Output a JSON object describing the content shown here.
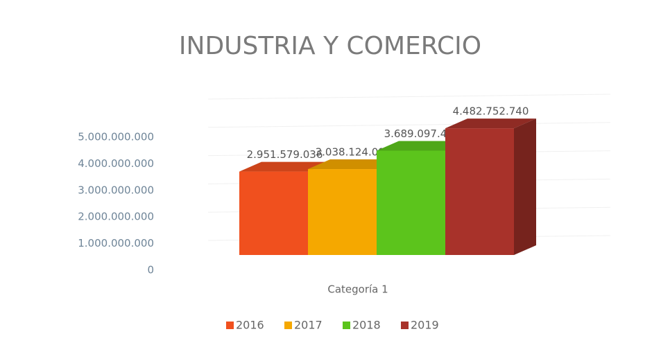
{
  "chart_data": {
    "type": "bar3d",
    "title": "INDUSTRIA Y COMERCIO",
    "categories": [
      "Categoría 1"
    ],
    "series": [
      {
        "name": "2016",
        "color": "#f0501e",
        "values": [
          2951579036
        ],
        "value_labels": [
          "2.951.579.036"
        ]
      },
      {
        "name": "2017",
        "color": "#f5a800",
        "values": [
          3038124096
        ],
        "value_labels": [
          "3.038.124.096"
        ]
      },
      {
        "name": "2018",
        "color": "#5cc41c",
        "values": [
          3689097458
        ],
        "value_labels": [
          "3.689.097.458"
        ]
      },
      {
        "name": "2019",
        "color": "#a8322a",
        "values": [
          4482752740
        ],
        "value_labels": [
          "4.482.752.740"
        ]
      }
    ],
    "ylim": [
      0,
      5000000000
    ],
    "yticks": [
      0,
      {
        "value": 1000000000,
        "label": "1.000.000.000"
      },
      {
        "value": 2000000000,
        "label": "2.000.000.000"
      },
      {
        "value": 3000000000,
        "label": "3.000.000.000"
      },
      {
        "value": 4000000000,
        "label": "4.000.000.000"
      },
      {
        "value": 5000000000,
        "label": "5.000.000.000"
      }
    ],
    "grid": true,
    "legend": "bottom"
  }
}
